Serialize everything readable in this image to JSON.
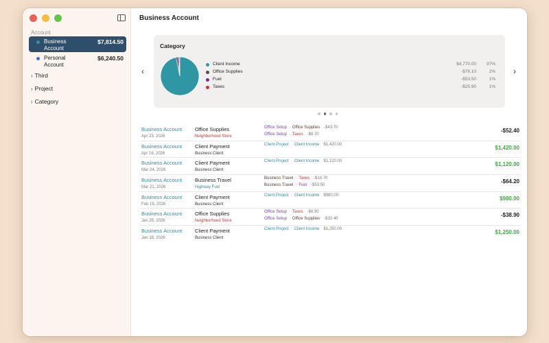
{
  "colors": {
    "client_income": "#2f97a4",
    "office_supplies": "#5a4a45",
    "fuel": "#7a2f8a",
    "taxes": "#d0332a",
    "tag_project": "#2a8ea5",
    "tag_setup": "#7b3fa6",
    "tag_travel": "#5a3a2a",
    "sub_store": "#cc3333",
    "sub_fuel": "#2a8ea5",
    "positive": "#3eaa3e"
  },
  "window": {
    "title": "Business Account"
  },
  "sidebar": {
    "section_label": "Account",
    "accounts": [
      {
        "name": "Business Account",
        "balance": "$7,814.50",
        "dot": "#2f97a4"
      },
      {
        "name": "Personal Account",
        "balance": "$6,240.50",
        "dot": "#3b6fd8"
      }
    ],
    "groups": [
      "Third",
      "Project",
      "Category"
    ]
  },
  "chart_card": {
    "title": "Category",
    "legend": [
      {
        "name": "Client Income",
        "amount": "$4,770.00",
        "pct": "97%"
      },
      {
        "name": "Office Supplies",
        "amount": "-$76.10",
        "pct": "2%"
      },
      {
        "name": "Fuel",
        "amount": "-$53.50",
        "pct": "1%"
      },
      {
        "name": "Taxes",
        "amount": "-$25.90",
        "pct": "1%"
      }
    ],
    "page_count": 4,
    "active_page": 2
  },
  "chart_data": {
    "type": "pie",
    "title": "Category",
    "categories": [
      "Client Income",
      "Office Supplies",
      "Fuel",
      "Taxes"
    ],
    "values": [
      4770.0,
      76.1,
      53.5,
      25.9
    ],
    "percent_labels": [
      "97%",
      "2%",
      "1%",
      "1%"
    ],
    "colors": [
      "#2f97a4",
      "#5a4a45",
      "#7a2f8a",
      "#d0332a"
    ],
    "legend_position": "right"
  },
  "transactions": [
    {
      "account": "Business Account",
      "date": "Apr 23, 2026",
      "payee": "Office Supplies",
      "sub": "Neighborhood Store",
      "sub_kind": "store",
      "splits": [
        {
          "tag": "Office Setup",
          "tag_kind": "setup",
          "cat": "Office Supplies",
          "cat_kind": "office",
          "amount": "-$43.70"
        },
        {
          "tag": "Office Setup",
          "tag_kind": "setup",
          "cat": "Taxes",
          "cat_kind": "taxes",
          "amount": "-$8.70"
        }
      ],
      "amount": "-$52.40",
      "positive": false
    },
    {
      "account": "Business Account",
      "date": "Apr 16, 2026",
      "payee": "Client Payment",
      "sub": "Business Client",
      "sub_kind": "client",
      "splits": [
        {
          "tag": "Client Project",
          "tag_kind": "project",
          "cat": "Client Income",
          "cat_kind": "income",
          "amount": "$1,420.00"
        }
      ],
      "amount": "$1,420.00",
      "positive": true
    },
    {
      "account": "Business Account",
      "date": "Mar 24, 2026",
      "payee": "Client Payment",
      "sub": "Business Client",
      "sub_kind": "client",
      "splits": [
        {
          "tag": "Client Project",
          "tag_kind": "project",
          "cat": "Client Income",
          "cat_kind": "income",
          "amount": "$1,120.00"
        }
      ],
      "amount": "$1,120.00",
      "positive": true
    },
    {
      "account": "Business Account",
      "date": "Mar 21, 2026",
      "payee": "Business Travel",
      "sub": "Highway Fuel",
      "sub_kind": "fuel",
      "splits": [
        {
          "tag": "Business Travel",
          "tag_kind": "travel",
          "cat": "Taxes",
          "cat_kind": "taxes",
          "amount": "-$10.70"
        },
        {
          "tag": "Business Travel",
          "tag_kind": "travel",
          "cat": "Fuel",
          "cat_kind": "fuel",
          "amount": "-$53.50"
        }
      ],
      "amount": "-$64.20",
      "positive": false
    },
    {
      "account": "Business Account",
      "date": "Feb 19, 2026",
      "payee": "Client Payment",
      "sub": "Business Client",
      "sub_kind": "client",
      "splits": [
        {
          "tag": "Client Project",
          "tag_kind": "project",
          "cat": "Client Income",
          "cat_kind": "income",
          "amount": "$980.00"
        }
      ],
      "amount": "$980.00",
      "positive": true
    },
    {
      "account": "Business Account",
      "date": "Jan 25, 2026",
      "payee": "Office Supplies",
      "sub": "Neighborhood Store",
      "sub_kind": "store",
      "splits": [
        {
          "tag": "Office Setup",
          "tag_kind": "setup",
          "cat": "Taxes",
          "cat_kind": "taxes",
          "amount": "-$6.50"
        },
        {
          "tag": "Office Setup",
          "tag_kind": "setup",
          "cat": "Office Supplies",
          "cat_kind": "office",
          "amount": "-$32.40"
        }
      ],
      "amount": "-$38.90",
      "positive": false
    },
    {
      "account": "Business Account",
      "date": "Jan 18, 2026",
      "payee": "Client Payment",
      "sub": "Business Client",
      "sub_kind": "client",
      "splits": [
        {
          "tag": "Client Project",
          "tag_kind": "project",
          "cat": "Client Income",
          "cat_kind": "income",
          "amount": "$1,250.00"
        }
      ],
      "amount": "$1,250.00",
      "positive": true
    }
  ]
}
